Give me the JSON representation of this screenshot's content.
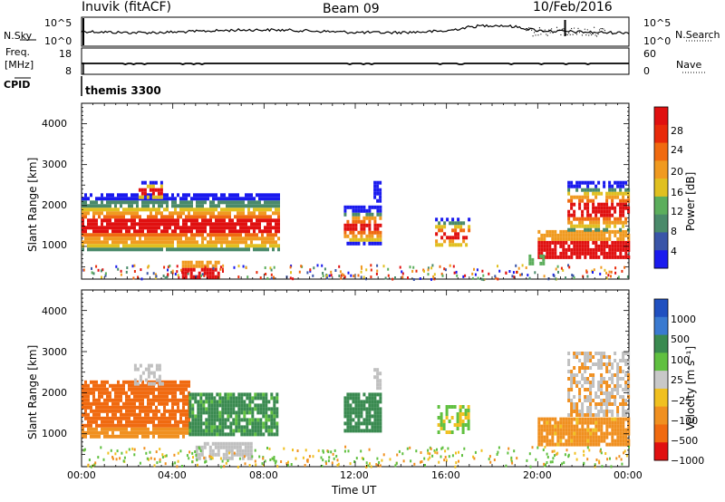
{
  "header": {
    "station": "Inuvik (fitACF)",
    "beam": "Beam 09",
    "date": "10/Feb/2016"
  },
  "top_panels": {
    "nsky_label": "N.Sky",
    "nsky_ticks": [
      "10^5",
      "10^0"
    ],
    "nsearch_label": "N.Search",
    "nsearch_ticks": [
      "10^5",
      "10^0"
    ],
    "freq_label_1": "Freq.",
    "freq_label_2": "[MHz]",
    "freq_ticks": [
      "18",
      "8"
    ],
    "nave_label": "Nave",
    "nave_ticks": [
      "60",
      "0"
    ],
    "cpid_label": "CPID",
    "cpid_value": "themis 3300"
  },
  "colors": {
    "power_scale": [
      "#1a1aee",
      "#3a55a8",
      "#4a8a6a",
      "#5cae5c",
      "#e0c020",
      "#f09a20",
      "#f06a10",
      "#e82a0a",
      "#e01010"
    ],
    "velocity_scale": [
      "#2050c0",
      "#3a7ad0",
      "#3a8a50",
      "#60c040",
      "#c8c8c8",
      "#f0c020",
      "#f09020",
      "#f06a10",
      "#e01010"
    ],
    "scatter_gray": "#c0c0c0"
  },
  "chart_data": [
    {
      "type": "heatmap",
      "title": "",
      "xlabel": "Time UT",
      "ylabel": "Slant Range [km]",
      "x_ticks": [
        "00:00",
        "04:00",
        "08:00",
        "12:00",
        "16:00",
        "20:00",
        "00:00"
      ],
      "y_ticks": [
        "1000",
        "2000",
        "3000",
        "4000"
      ],
      "ylim": [
        200,
        4500
      ],
      "colorbar_label": "Power [dB]",
      "colorbar_ticks": [
        "28",
        "24",
        "20",
        "16",
        "12",
        "8",
        "4"
      ],
      "regions": [
        {
          "t": [
            0.0,
            8.6
          ],
          "range": [
            800,
            2400
          ],
          "level": "strong"
        },
        {
          "t": [
            4.3,
            6.0
          ],
          "range": [
            200,
            700
          ],
          "level": "strong"
        },
        {
          "t": [
            11.5,
            13.1
          ],
          "range": [
            1000,
            2000
          ],
          "level": "moderate"
        },
        {
          "t": [
            15.5,
            17.0
          ],
          "range": [
            900,
            1700
          ],
          "level": "moderate"
        },
        {
          "t": [
            20.0,
            24.0
          ],
          "range": [
            700,
            1500
          ],
          "level": "strong"
        },
        {
          "t": [
            21.5,
            24.0
          ],
          "range": [
            1500,
            2600
          ],
          "level": "moderate"
        }
      ]
    },
    {
      "type": "heatmap",
      "title": "",
      "xlabel": "Time UT",
      "ylabel": "Slant Range [km]",
      "x_ticks": [
        "00:00",
        "04:00",
        "08:00",
        "12:00",
        "16:00",
        "20:00",
        "00:00"
      ],
      "y_ticks": [
        "1000",
        "2000",
        "3000",
        "4000"
      ],
      "ylim": [
        200,
        4500
      ],
      "colorbar_label": "Velocity [m s⁻¹]",
      "colorbar_ticks": [
        "1000",
        "500",
        "100",
        "25",
        "−25",
        "−100",
        "−500",
        "−1000"
      ],
      "regions": [
        {
          "t": [
            0.0,
            4.7
          ],
          "range": [
            900,
            2300
          ],
          "velocity": "-500"
        },
        {
          "t": [
            4.7,
            8.6
          ],
          "range": [
            1000,
            2000
          ],
          "velocity": "100"
        },
        {
          "t": [
            11.5,
            13.1
          ],
          "range": [
            1000,
            2000
          ],
          "velocity": "100"
        },
        {
          "t": [
            20.0,
            24.0
          ],
          "range": [
            700,
            1500
          ],
          "velocity": "-100"
        },
        {
          "t": [
            21.5,
            24.0
          ],
          "range": [
            1500,
            3000
          ],
          "velocity": "-25"
        }
      ]
    }
  ]
}
